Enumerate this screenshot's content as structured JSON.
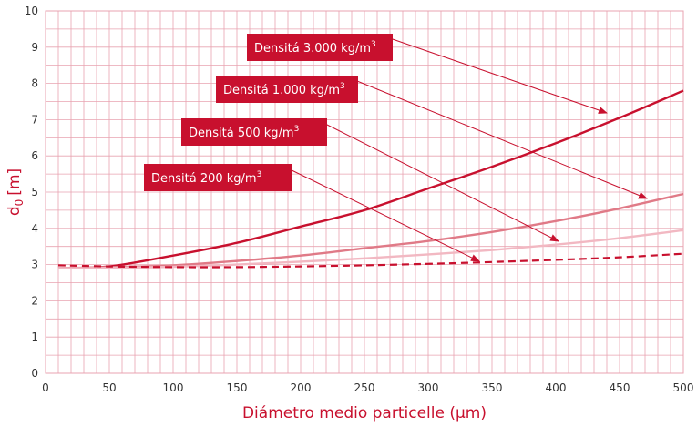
{
  "chart_data": {
    "type": "line",
    "xlabel_main": "Diámetro medio particelle (",
    "xlabel_unit": "µm",
    "xlabel_end": ")",
    "ylabel_main": "d",
    "ylabel_sub": "0",
    "ylabel_unit": "[m]",
    "xlim": [
      0,
      500
    ],
    "ylim": [
      0,
      10
    ],
    "x_ticks": [
      "0",
      "50",
      "100",
      "150",
      "200",
      "250",
      "300",
      "350",
      "400",
      "450",
      "500"
    ],
    "y_ticks": [
      "0",
      "1",
      "2",
      "3",
      "4",
      "5",
      "6",
      "7",
      "8",
      "9",
      "10"
    ],
    "grid": true,
    "colors": {
      "grid": "#e8a3b0",
      "accent": "#c8102e"
    },
    "x": [
      10,
      50,
      100,
      150,
      200,
      250,
      300,
      350,
      400,
      450,
      500
    ],
    "series": [
      {
        "name_main": "Densitá 3.000 kg/m",
        "name_sup": "3",
        "color": "#c8102e",
        "style": "solid",
        "values": [
          2.9,
          2.95,
          3.25,
          3.6,
          4.05,
          4.5,
          5.1,
          5.7,
          6.35,
          7.05,
          7.8
        ]
      },
      {
        "name_main": "Densitá 1.000 kg/m",
        "name_sup": "3",
        "color": "#e07a87",
        "style": "solid",
        "values": [
          2.9,
          2.93,
          2.98,
          3.1,
          3.25,
          3.45,
          3.65,
          3.9,
          4.2,
          4.55,
          4.95
        ]
      },
      {
        "name_main": "Densitá 500 kg/m",
        "name_sup": "3",
        "color": "#f2b8c2",
        "style": "solid",
        "values": [
          2.9,
          2.91,
          2.94,
          3.0,
          3.08,
          3.17,
          3.28,
          3.4,
          3.55,
          3.73,
          3.95
        ]
      },
      {
        "name_main": "Densitá 200 kg/m",
        "name_sup": "3",
        "color": "#c8102e",
        "style": "dashed",
        "values": [
          2.98,
          2.95,
          2.93,
          2.93,
          2.95,
          2.98,
          3.02,
          3.07,
          3.13,
          3.2,
          3.3
        ]
      }
    ]
  }
}
